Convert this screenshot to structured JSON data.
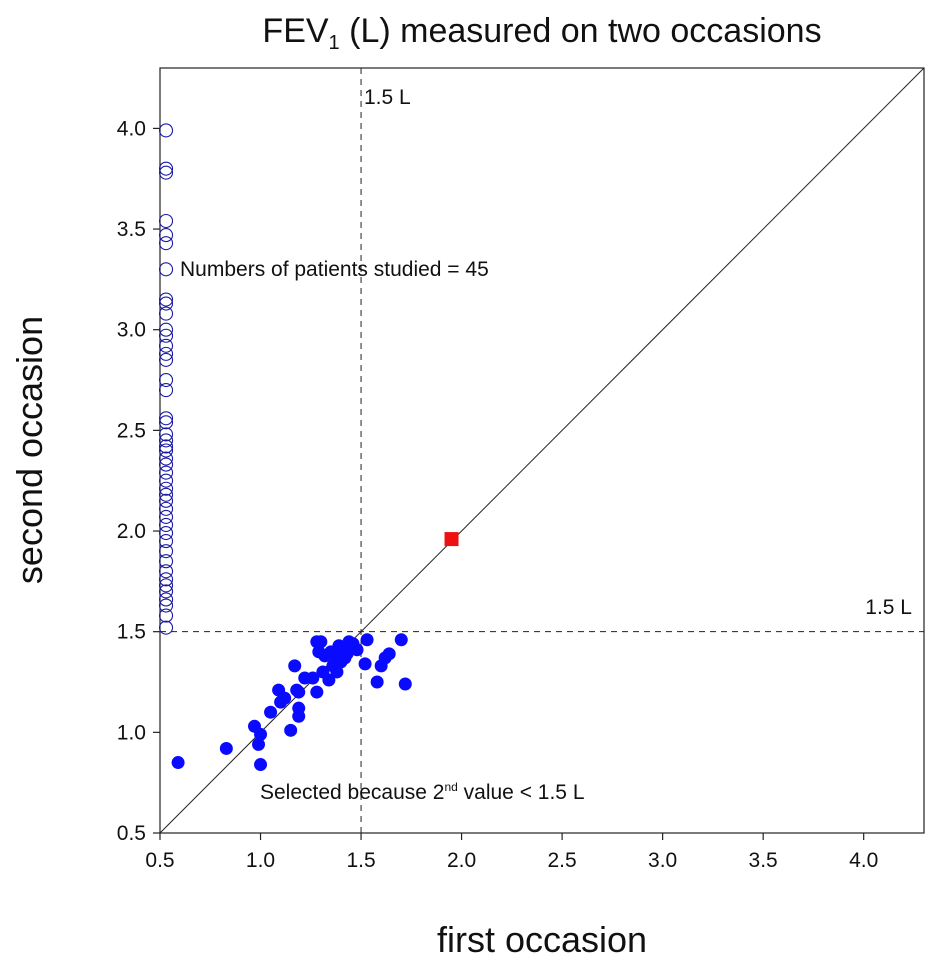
{
  "chart_data": {
    "type": "scatter",
    "title": {
      "pre": "FEV",
      "sub": "1",
      "post": " (L) measured on two occasions"
    },
    "xlabel": "first occasion",
    "ylabel": "second occasion",
    "xlim": [
      0.5,
      4.3
    ],
    "ylim": [
      0.5,
      4.3
    ],
    "xticks": [
      "0.5",
      "1.0",
      "1.5",
      "2.0",
      "2.5",
      "3.0",
      "3.5",
      "4.0"
    ],
    "yticks": [
      "0.5",
      "1.0",
      "1.5",
      "2.0",
      "2.5",
      "3.0",
      "3.5",
      "4.0"
    ],
    "grid": false,
    "identity_line": true,
    "threshold_lines": [
      {
        "axis": "x",
        "value": 1.5,
        "label": "1.5 L"
      },
      {
        "axis": "y",
        "value": 1.5,
        "label": "1.5 L"
      }
    ],
    "annotations": {
      "patients": "Numbers of patients studied = 45",
      "selected_pre": "Selected because 2",
      "selected_sup": "nd",
      "selected_post": " value < 1.5 L"
    },
    "colors": {
      "open": "#1a1aa6",
      "filled": "#0a0aff",
      "highlight": "#ee1111",
      "line": "#222222"
    },
    "series": [
      {
        "marker": "open-circle",
        "x_all": 0.53,
        "y": [
          3.99,
          3.8,
          3.78,
          3.54,
          3.47,
          3.43,
          3.3,
          3.15,
          3.13,
          3.08,
          3.0,
          2.97,
          2.92,
          2.88,
          2.85,
          2.75,
          2.7,
          2.56,
          2.54,
          2.48,
          2.45,
          2.42,
          2.4,
          2.36,
          2.33,
          2.29,
          2.25,
          2.21,
          2.18,
          2.15,
          2.11,
          2.07,
          2.03,
          1.99,
          1.95,
          1.9,
          1.85,
          1.8,
          1.76,
          1.73,
          1.7,
          1.66,
          1.63,
          1.58,
          1.52
        ]
      },
      {
        "marker": "filled-circle",
        "x": [
          0.59,
          0.83,
          0.97,
          0.99,
          1.0,
          1.0,
          1.05,
          1.09,
          1.1,
          1.12,
          1.15,
          1.17,
          1.18,
          1.19,
          1.19,
          1.19,
          1.22,
          1.26,
          1.28,
          1.28,
          1.29,
          1.3,
          1.31,
          1.32,
          1.34,
          1.35,
          1.36,
          1.37,
          1.38,
          1.39,
          1.4,
          1.4,
          1.41,
          1.42,
          1.43,
          1.44,
          1.46,
          1.48,
          1.52,
          1.53,
          1.58,
          1.6,
          1.62,
          1.64,
          1.7,
          1.72
        ],
        "y": [
          0.85,
          0.92,
          1.03,
          0.94,
          0.99,
          0.84,
          1.1,
          1.21,
          1.15,
          1.17,
          1.01,
          1.33,
          1.21,
          1.08,
          1.12,
          1.2,
          1.27,
          1.27,
          1.45,
          1.2,
          1.4,
          1.45,
          1.3,
          1.38,
          1.26,
          1.4,
          1.33,
          1.38,
          1.3,
          1.43,
          1.35,
          1.4,
          1.42,
          1.37,
          1.39,
          1.45,
          1.44,
          1.41,
          1.34,
          1.46,
          1.25,
          1.33,
          1.37,
          1.39,
          1.46,
          1.24
        ]
      },
      {
        "marker": "filled-square",
        "x": [
          1.95
        ],
        "y": [
          1.96
        ]
      }
    ]
  }
}
